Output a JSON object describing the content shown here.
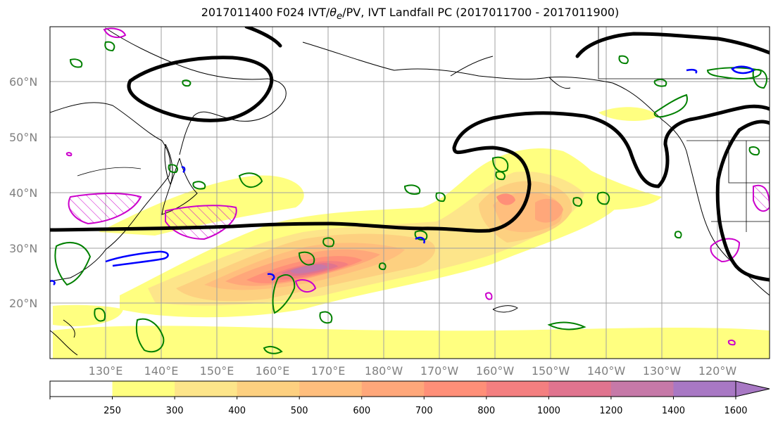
{
  "title": {
    "prefix": "2017011400 F024 IVT/",
    "theta": "θ",
    "theta_sub": "e",
    "suffix": "/PV, IVT Landfall PC (2017011700 - 2017011900)"
  },
  "lat_labels": [
    "60°N",
    "50°N",
    "40°N",
    "30°N",
    "20°N"
  ],
  "lon_labels": [
    "130°E",
    "140°E",
    "150°E",
    "160°E",
    "170°E",
    "180°W",
    "170°W",
    "160°W",
    "150°W",
    "140°W",
    "130°W",
    "120°W"
  ],
  "colorbar": {
    "ticks": [
      "250",
      "300",
      "400",
      "500",
      "600",
      "700",
      "800",
      "1000",
      "1200",
      "1400",
      "1600"
    ],
    "colors": [
      "#ffffff",
      "#ffff80",
      "#fde58a",
      "#fdd080",
      "#ffbe7d",
      "#ffa77a",
      "#ff8f78",
      "#f47f80",
      "#e0748f",
      "#c679a8",
      "#a878c4"
    ]
  },
  "contour_colors": {
    "ivt_pc": "#000000",
    "theta_e": "#008000",
    "pv_magenta": "#cc00cc",
    "pv_blue": "#0000ff"
  }
}
